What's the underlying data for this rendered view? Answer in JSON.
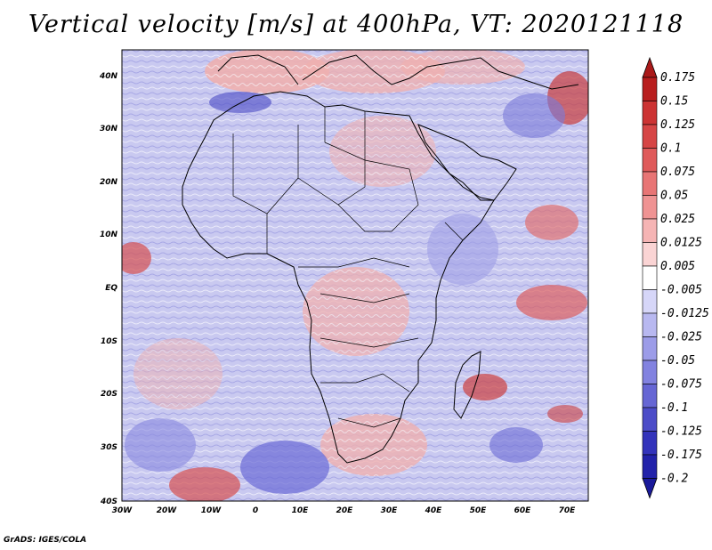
{
  "title": "Vertical velocity [m/s] at 400hPa, VT: 2020121118",
  "credit": "GrADS: IGES/COLA",
  "axes": {
    "lat_ticks": [
      "40N",
      "30N",
      "20N",
      "10N",
      "EQ",
      "10S",
      "20S",
      "30S",
      "40S"
    ],
    "lon_ticks": [
      "30W",
      "20W",
      "10W",
      "0",
      "10E",
      "20E",
      "30E",
      "40E",
      "50E",
      "60E",
      "70E"
    ],
    "lat_range": [
      -40,
      45
    ],
    "lon_range": [
      -30,
      75
    ]
  },
  "colorbar": {
    "labels": [
      "0.175",
      "0.15",
      "0.125",
      "0.1",
      "0.075",
      "0.05",
      "0.025",
      "0.0125",
      "0.005",
      "-0.005",
      "-0.0125",
      "-0.025",
      "-0.05",
      "-0.075",
      "-0.1",
      "-0.125",
      "-0.175",
      "-0.2"
    ],
    "colors": [
      "#b81e1e",
      "#cc3333",
      "#d64545",
      "#df5a5a",
      "#e87575",
      "#ef9393",
      "#f5b4b4",
      "#fad4d4",
      "#ffffff",
      "#d6d6f8",
      "#b8b8f0",
      "#9c9ce8",
      "#8282e0",
      "#6666d4",
      "#4c4cc8",
      "#3333bb",
      "#2222aa"
    ],
    "top_color": "#aa1a1a",
    "bottom_color": "#1a1a9a"
  },
  "colors": {
    "map_background": "#c7c7ee",
    "positive": "#e89696",
    "negative": "#8e8ede",
    "outline": "#000000"
  }
}
